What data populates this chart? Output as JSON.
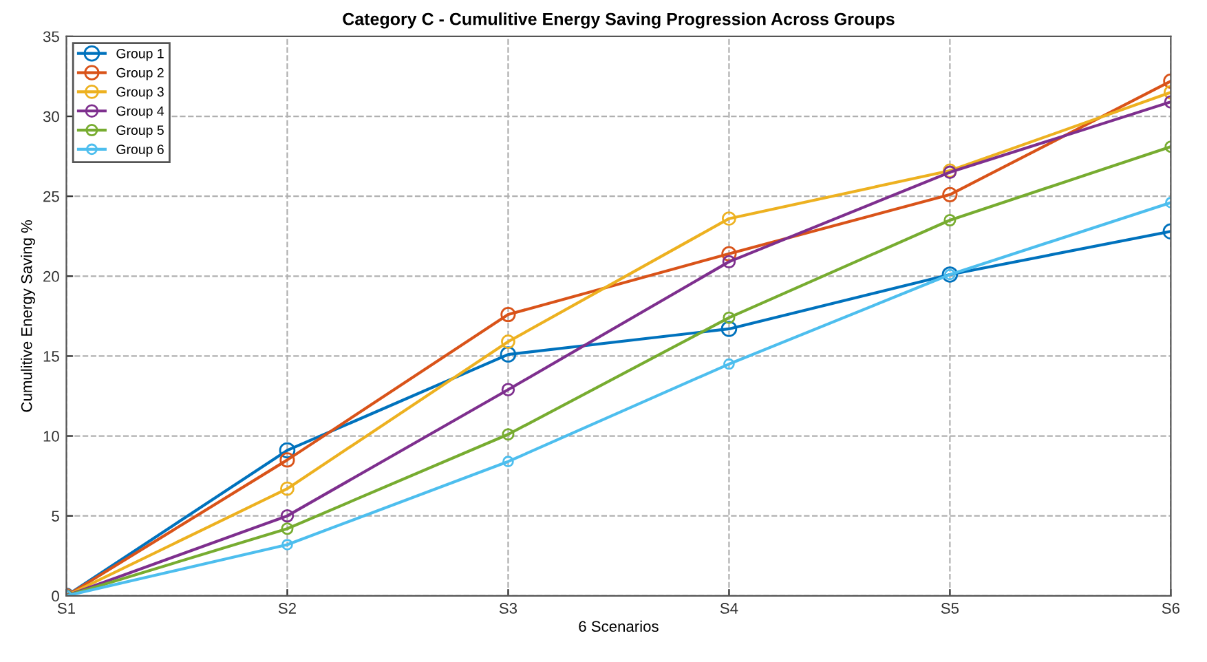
{
  "chart_data": {
    "type": "line",
    "title": "Category C - Cumulitive Energy Saving Progression Across Groups",
    "xlabel": "6 Scenarios",
    "ylabel": "Cumulitive Energy Saving %",
    "categories": [
      "S1",
      "S2",
      "S3",
      "S4",
      "S5",
      "S6"
    ],
    "series": [
      {
        "name": "Group 1",
        "color": "#0072bd",
        "values": [
          0,
          9.1,
          15.1,
          16.7,
          20.1,
          22.8
        ]
      },
      {
        "name": "Group 2",
        "color": "#d95319",
        "values": [
          0,
          8.5,
          17.6,
          21.4,
          25.1,
          32.2
        ]
      },
      {
        "name": "Group 3",
        "color": "#edb120",
        "values": [
          0,
          6.7,
          15.9,
          23.6,
          26.6,
          31.5
        ]
      },
      {
        "name": "Group 4",
        "color": "#7e2f8e",
        "values": [
          0,
          5.0,
          12.9,
          20.9,
          26.5,
          30.9
        ]
      },
      {
        "name": "Group 5",
        "color": "#77ac30",
        "values": [
          0,
          4.2,
          10.1,
          17.4,
          23.5,
          28.1
        ]
      },
      {
        "name": "Group 6",
        "color": "#4dbeee",
        "values": [
          0,
          3.2,
          8.4,
          14.5,
          20.1,
          24.6
        ]
      }
    ],
    "ylim": [
      0,
      35
    ],
    "yticks": [
      0,
      5,
      10,
      15,
      20,
      25,
      30,
      35
    ],
    "grid": true,
    "legend": "top left",
    "marker": "circle",
    "line_style": "solid"
  }
}
